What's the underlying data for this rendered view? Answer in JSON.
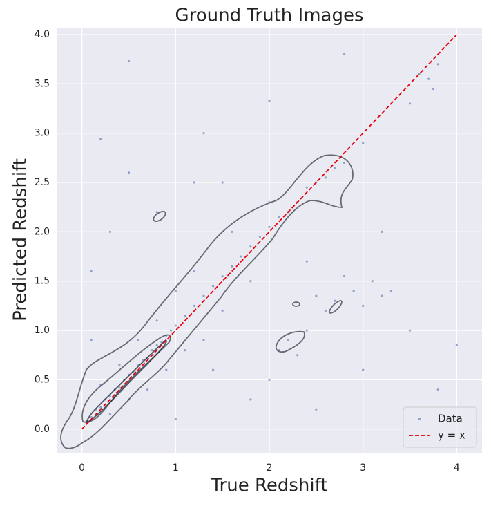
{
  "chart_data": {
    "type": "scatter",
    "title": "Ground Truth Images",
    "xlabel": "True Redshift",
    "ylabel": "Predicted Redshift",
    "xlim": [
      -0.27,
      4.27
    ],
    "ylim": [
      -0.24,
      4.07
    ],
    "xticks": [
      0,
      1,
      2,
      3,
      4
    ],
    "yticks": [
      {
        "value": 0,
        "label": "0.0"
      },
      {
        "value": 0.5,
        "label": "0.5"
      },
      {
        "value": 1,
        "label": "1.0"
      },
      {
        "value": 1.5,
        "label": "1.5"
      },
      {
        "value": 2,
        "label": "2.0"
      },
      {
        "value": 2.5,
        "label": "2.5"
      },
      {
        "value": 3,
        "label": "3.0"
      },
      {
        "value": 3.5,
        "label": "3.5"
      },
      {
        "value": 4,
        "label": "4.0"
      }
    ],
    "grid": true,
    "legend": "lower right",
    "series": [
      {
        "name": "Data",
        "color": "#4c72b0",
        "x": [
          0.05,
          0.1,
          0.15,
          0.2,
          0.25,
          0.3,
          0.35,
          0.4,
          0.45,
          0.5,
          0.55,
          0.6,
          0.65,
          0.7,
          0.75,
          0.8,
          0.85,
          0.9,
          0.95,
          1.0,
          1.1,
          1.2,
          1.3,
          1.4,
          1.5,
          1.6,
          1.7,
          1.8,
          1.9,
          2.0,
          2.1,
          2.2,
          2.3,
          2.4,
          2.5,
          2.6,
          2.7,
          2.8,
          3.6,
          3.7,
          3.8,
          3.75,
          3.5,
          0.2,
          0.3,
          0.4,
          0.5,
          0.6,
          0.7,
          0.8,
          0.9,
          1.0,
          1.1,
          1.2,
          1.3,
          1.5,
          1.6,
          1.8,
          2.0,
          2.5,
          2.7,
          2.9,
          3.0,
          3.1,
          3.2,
          3.3,
          2.8,
          2.6,
          2.1,
          2.2,
          2.3,
          2.4,
          0.5,
          0.2,
          2.0,
          0.1,
          0.3,
          0.5,
          0.8,
          1.3,
          1.5,
          1.8,
          2.0,
          2.5,
          3.0,
          3.2,
          3.5,
          3.8,
          4.0,
          3.0,
          2.8,
          1.0,
          1.4,
          0.1,
          1.2,
          2.4
        ],
        "values": [
          0.08,
          0.12,
          0.2,
          0.22,
          0.3,
          0.33,
          0.4,
          0.42,
          0.5,
          0.55,
          0.58,
          0.65,
          0.7,
          0.72,
          0.8,
          0.85,
          0.88,
          0.95,
          1.0,
          1.05,
          1.15,
          1.25,
          1.35,
          1.45,
          1.55,
          1.65,
          1.75,
          1.85,
          1.95,
          2.05,
          2.15,
          2.2,
          2.3,
          2.45,
          2.5,
          2.55,
          2.65,
          2.7,
          3.6,
          3.55,
          3.7,
          3.45,
          3.3,
          0.45,
          0.15,
          0.65,
          0.3,
          0.9,
          0.4,
          1.1,
          0.6,
          1.4,
          0.8,
          1.6,
          0.9,
          1.2,
          2.0,
          1.5,
          2.3,
          1.35,
          1.3,
          1.4,
          1.25,
          1.5,
          1.35,
          1.4,
          1.55,
          1.2,
          0.8,
          0.9,
          0.75,
          1.0,
          3.73,
          2.94,
          3.33,
          1.6,
          2.0,
          2.6,
          2.2,
          3.0,
          2.5,
          0.3,
          0.5,
          0.2,
          0.6,
          2.0,
          1.0,
          0.4,
          0.85,
          2.9,
          3.8,
          0.1,
          0.6,
          0.9,
          2.5,
          1.7
        ]
      },
      {
        "name": "y = x",
        "color": "#e8000b",
        "style": "dashed",
        "x": [
          0,
          4
        ],
        "values": [
          0,
          4
        ]
      }
    ]
  }
}
